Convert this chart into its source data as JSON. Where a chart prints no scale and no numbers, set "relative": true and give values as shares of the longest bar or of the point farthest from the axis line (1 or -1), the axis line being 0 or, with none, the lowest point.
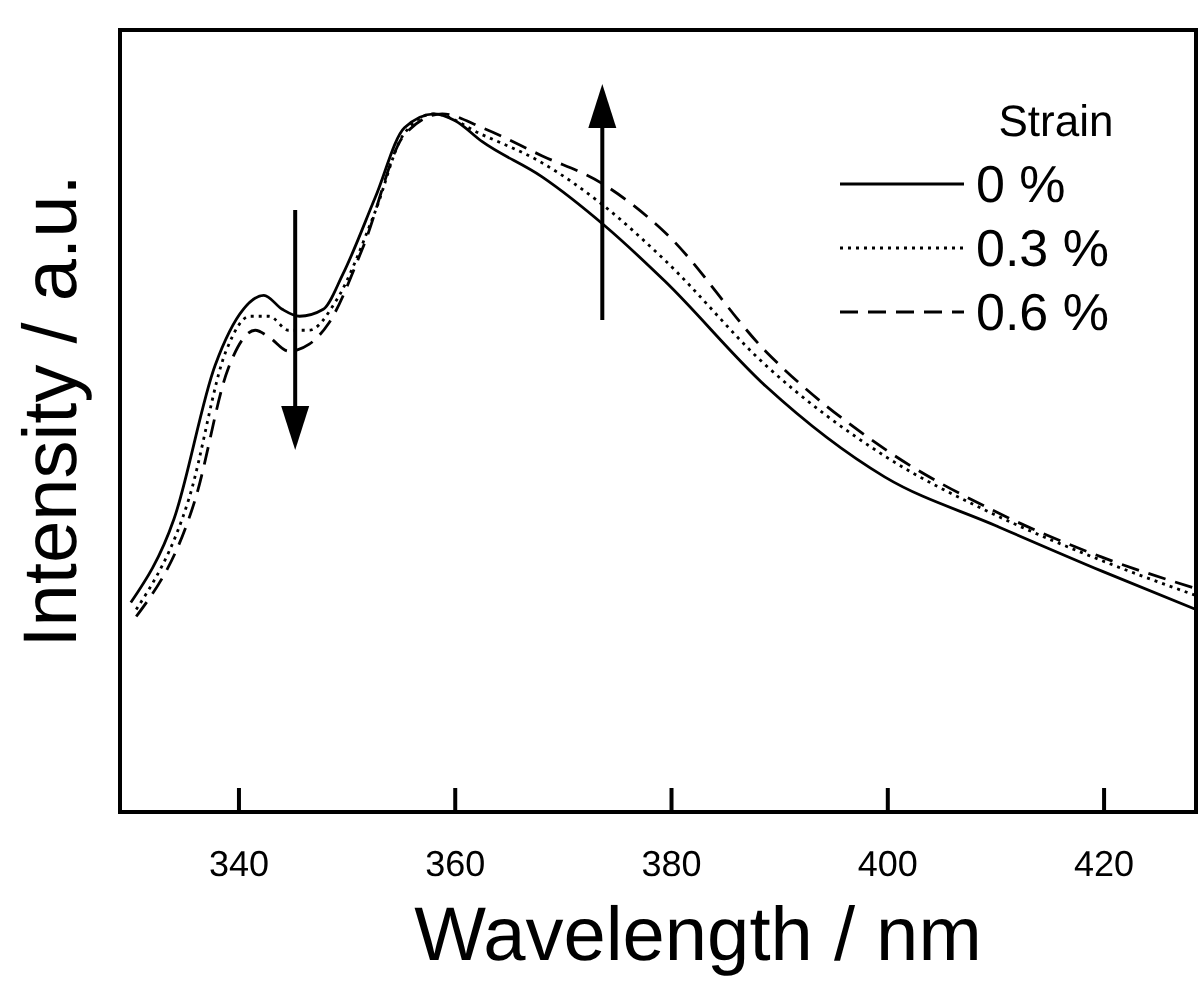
{
  "chart_data": {
    "type": "line",
    "relative": true,
    "xlabel": "Wavelength / nm",
    "ylabel": "Intensity / a.u.",
    "legend_title": "Strain",
    "legend": "top right",
    "xlim": [
      329,
      428.5
    ],
    "xticks": [
      340,
      360,
      380,
      400,
      420
    ],
    "series": [
      {
        "name": "0 %",
        "color": "#000000",
        "line_style": "solid",
        "x": [
          330,
          334,
          337.8,
          340.4,
          342.3,
          344,
          345.6,
          347.8,
          349.6,
          352.6,
          355.3,
          358.1,
          360,
          362.5,
          368,
          373.8,
          379.4,
          388.7,
          399.7,
          410,
          419.8,
          428.5
        ],
        "values": [
          0.3,
          0.42,
          0.64,
          0.72,
          0.74,
          0.72,
          0.71,
          0.72,
          0.77,
          0.88,
          0.98,
          1.0,
          0.99,
          0.96,
          0.91,
          0.84,
          0.76,
          0.61,
          0.48,
          0.41,
          0.345,
          0.29
        ]
      },
      {
        "name": "0.3 %",
        "color": "#000000",
        "line_style": "dotted",
        "x": [
          330.5,
          335.4,
          338.8,
          341,
          342.8,
          344.6,
          346.5,
          348.9,
          352.6,
          355.2,
          358,
          362.5,
          368,
          373.6,
          379.4,
          388.7,
          399.7,
          410,
          419.8,
          428.5
        ],
        "values": [
          0.29,
          0.45,
          0.66,
          0.71,
          0.71,
          0.69,
          0.69,
          0.73,
          0.86,
          0.97,
          1.0,
          0.97,
          0.93,
          0.87,
          0.79,
          0.64,
          0.51,
          0.425,
          0.36,
          0.31
        ]
      },
      {
        "name": "0.6 %",
        "color": "#000000",
        "line_style": "dashed",
        "x": [
          330.5,
          336,
          339,
          341.5,
          342.8,
          344.6,
          346.5,
          348.3,
          351.5,
          355.3,
          358.8,
          362.5,
          368,
          373.6,
          379.4,
          388.7,
          399.7,
          410,
          419.8,
          428.5
        ],
        "values": [
          0.28,
          0.45,
          0.635,
          0.69,
          0.68,
          0.66,
          0.67,
          0.7,
          0.81,
          0.97,
          1.0,
          0.98,
          0.94,
          0.9,
          0.83,
          0.66,
          0.52,
          0.43,
          0.365,
          0.32
        ]
      }
    ]
  }
}
